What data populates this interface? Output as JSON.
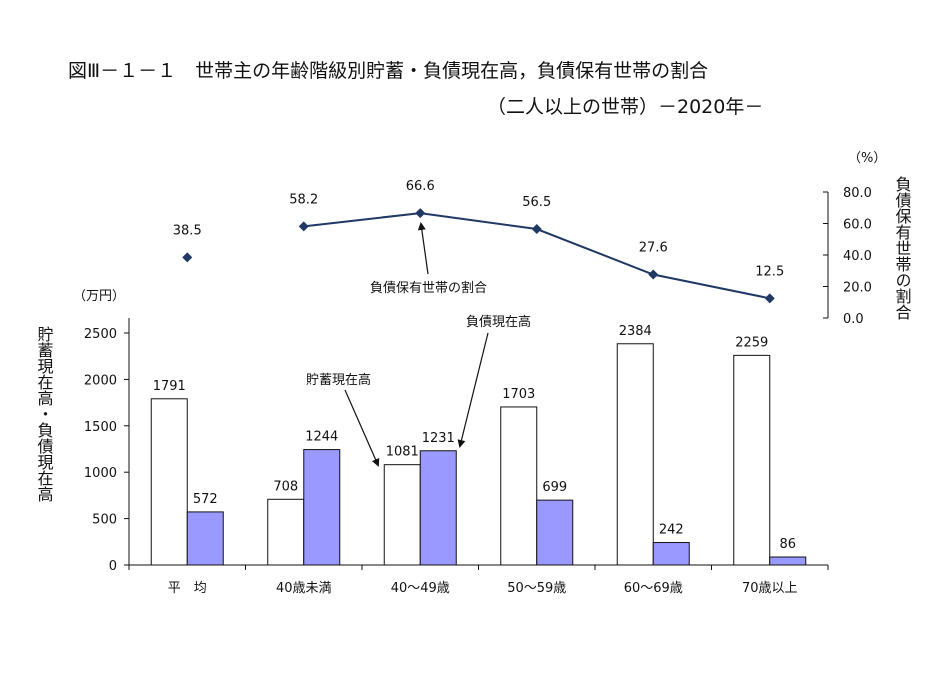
{
  "title": {
    "line1": "図Ⅲ－１－１　世帯主の年齢階級別貯蓄・負債現在高，負債保有世帯の割合",
    "line2": "（二人以上の世帯）－2020年－"
  },
  "chart_data": {
    "type": "bar",
    "categories": [
      "平　均",
      "40歳未満",
      "40～49歳",
      "50～59歳",
      "60～69歳",
      "70歳以上"
    ],
    "series": [
      {
        "name": "貯蓄現在高",
        "values": [
          1791,
          708,
          1081,
          1703,
          2384,
          2259
        ],
        "color": "#ffffff"
      },
      {
        "name": "負債現在高",
        "values": [
          572,
          1244,
          1231,
          699,
          242,
          86
        ],
        "color": "#9999ff"
      }
    ],
    "line_series": {
      "name": "負債保有世帯の割合",
      "values": [
        38.5,
        58.2,
        66.6,
        56.5,
        27.6,
        12.5
      ],
      "color": "#1f3864"
    },
    "y_left": {
      "unit": "（万円）",
      "label": "貯蓄現在高・負債現在高",
      "lim": [
        0,
        2500
      ],
      "ticks": [
        0,
        500,
        1000,
        1500,
        2000,
        2500
      ]
    },
    "y_right": {
      "unit": "（%）",
      "label": "負債保有世帯の割合",
      "lim": [
        0,
        80
      ],
      "ticks": [
        "0.0",
        "20.0",
        "40.0",
        "60.0",
        "80.0"
      ]
    },
    "annotations": {
      "savings": "貯蓄現在高",
      "debt": "負債現在高",
      "ratio": "負債保有世帯の割合"
    },
    "grid": false
  }
}
